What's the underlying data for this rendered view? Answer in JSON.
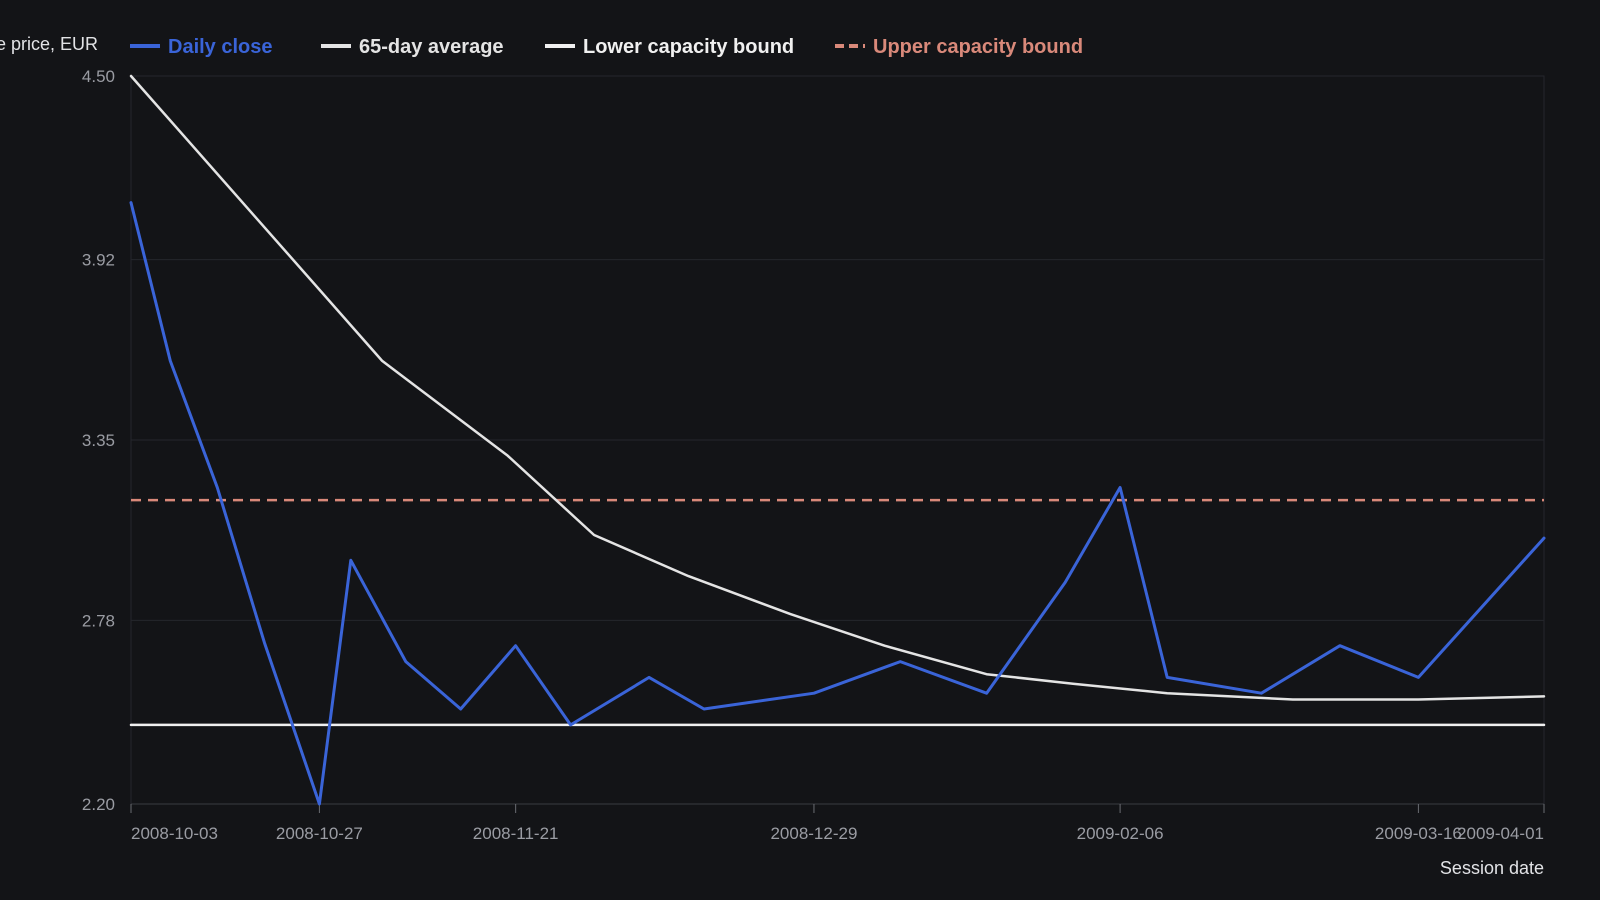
{
  "chart_data": {
    "type": "line",
    "title": "",
    "xlabel": "Session date",
    "ylabel": "re price, EUR",
    "ylim": [
      2.2,
      4.5
    ],
    "xlim": [
      "2008-10-03",
      "2009-04-01"
    ],
    "y_ticks": [
      "2.20",
      "2.78",
      "3.35",
      "3.92",
      "4.50"
    ],
    "x_ticks": [
      {
        "date": "2008-10-03",
        "label": "2008-10-03"
      },
      {
        "date": "2008-10-27",
        "label": "2008-10-27"
      },
      {
        "date": "2008-11-21",
        "label": "2008-11-21"
      },
      {
        "date": "2008-12-29",
        "label": "2008-12-29"
      },
      {
        "date": "2009-02-06",
        "label": "2009-02-06"
      },
      {
        "date": "2009-03-16",
        "label": "2009-03-16"
      },
      {
        "date": "2009-04-01",
        "label": "2009-04-01"
      }
    ],
    "grid": true,
    "legend_position": "top-left",
    "series": [
      {
        "name": "Daily close",
        "color": "#3a64d8",
        "style": "solid",
        "x": [
          "2008-10-03",
          "2008-10-08",
          "2008-10-14",
          "2008-10-20",
          "2008-10-27",
          "2008-10-31",
          "2008-11-07",
          "2008-11-14",
          "2008-11-21",
          "2008-11-28",
          "2008-12-08",
          "2008-12-15",
          "2008-12-29",
          "2009-01-09",
          "2009-01-20",
          "2009-01-30",
          "2009-02-06",
          "2009-02-12",
          "2009-02-24",
          "2009-03-06",
          "2009-03-16",
          "2009-04-01"
        ],
        "y": [
          4.1,
          3.6,
          3.2,
          2.71,
          2.2,
          2.97,
          2.65,
          2.5,
          2.7,
          2.45,
          2.6,
          2.5,
          2.55,
          2.65,
          2.55,
          2.9,
          3.2,
          2.6,
          2.55,
          2.7,
          2.6,
          3.04
        ]
      },
      {
        "name": "65-day average",
        "color": "#e4e4e4",
        "style": "solid",
        "x": [
          "2008-10-03",
          "2008-10-19",
          "2008-11-04",
          "2008-11-20",
          "2008-12-01",
          "2008-12-13",
          "2008-12-26",
          "2009-01-07",
          "2009-01-20",
          "2009-01-31",
          "2009-02-12",
          "2009-02-28",
          "2009-03-16",
          "2009-04-01"
        ],
        "y": [
          4.5,
          4.05,
          3.6,
          3.3,
          3.05,
          2.92,
          2.8,
          2.7,
          2.61,
          2.58,
          2.55,
          2.53,
          2.53,
          2.54
        ]
      },
      {
        "name": "Lower capacity bound",
        "color": "#f0f0f0",
        "style": "solid",
        "x": [
          "2008-10-03",
          "2009-04-01"
        ],
        "y": [
          2.45,
          2.45
        ]
      },
      {
        "name": "Upper capacity bound",
        "color": "#d9897a",
        "style": "dashed",
        "x": [
          "2008-10-03",
          "2009-04-01"
        ],
        "y": [
          3.16,
          3.16
        ]
      }
    ]
  }
}
